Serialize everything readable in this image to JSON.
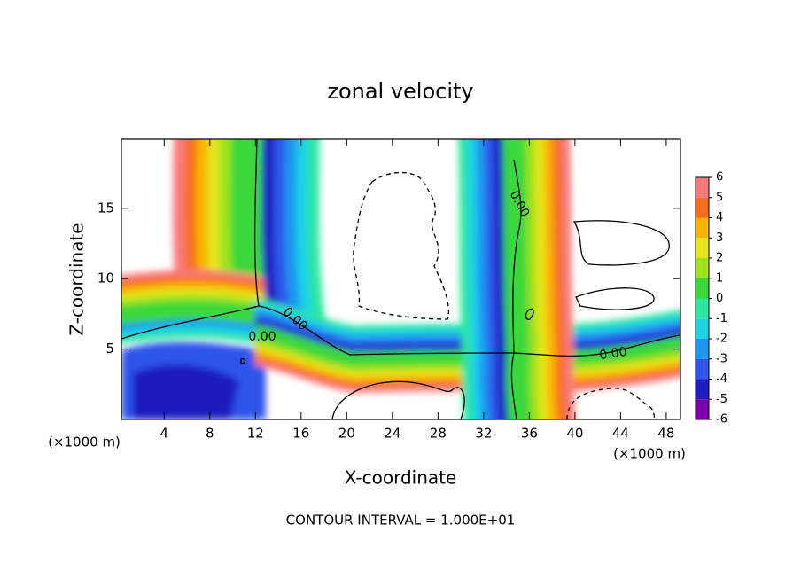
{
  "chart_data": {
    "type": "contour",
    "title": "zonal velocity",
    "x_label": "X-coordinate",
    "y_label": "Z-coordinate",
    "y_unit_label": "(×1000 m)",
    "x_unit_label": "(×1000 m)",
    "footer": "CONTOUR INTERVAL = 1.000E+01",
    "xlim": [
      0.25,
      49.25
    ],
    "xticks": [
      4,
      8,
      12,
      16,
      20,
      24,
      28,
      32,
      36,
      40,
      44,
      48
    ],
    "ylim": [
      0,
      19.9
    ],
    "yticks": [
      5,
      10,
      15
    ],
    "contour_labels": [
      "0.00",
      "0.00",
      "0.00",
      "0.00"
    ],
    "colorbar": {
      "levels": [
        -6,
        -5,
        -4,
        -3,
        -2,
        -1,
        0,
        1,
        2,
        3,
        4,
        5,
        6
      ],
      "colors": [
        "#7a00a8",
        "#1e1ebe",
        "#2f55ea",
        "#1e96f0",
        "#1ed2e6",
        "#2ee6a0",
        "#3ad83a",
        "#9ee21e",
        "#e6e61e",
        "#f8b400",
        "#f86e1e",
        "#f87a7a"
      ]
    }
  }
}
